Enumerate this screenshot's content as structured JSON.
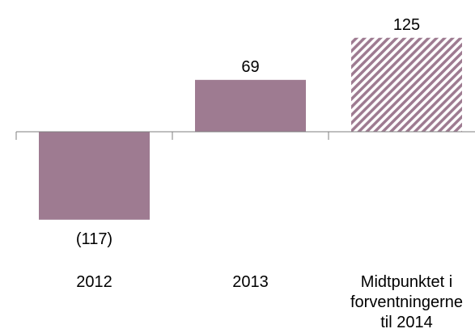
{
  "chart_data": {
    "type": "bar",
    "categories": [
      "2012",
      "2013",
      "Midtpunktet i forventningerne til 2014"
    ],
    "category_label_lines": [
      [
        "2012"
      ],
      [
        "2013"
      ],
      [
        "Midtpunktet i",
        "forventningerne",
        "til 2014"
      ]
    ],
    "values": [
      -117,
      69,
      125
    ],
    "data_labels": [
      "(117)",
      "69",
      "125"
    ],
    "bar_styles": [
      "solid",
      "solid",
      "hatched"
    ],
    "title": "",
    "xlabel": "",
    "ylabel": "",
    "ylim": [
      -117,
      125
    ],
    "grid": false,
    "legend": "none",
    "colors": {
      "bar": "#9e7b91",
      "hatch_background": "#ffffff",
      "axis": "#7f7f7f",
      "text": "#000000"
    }
  }
}
